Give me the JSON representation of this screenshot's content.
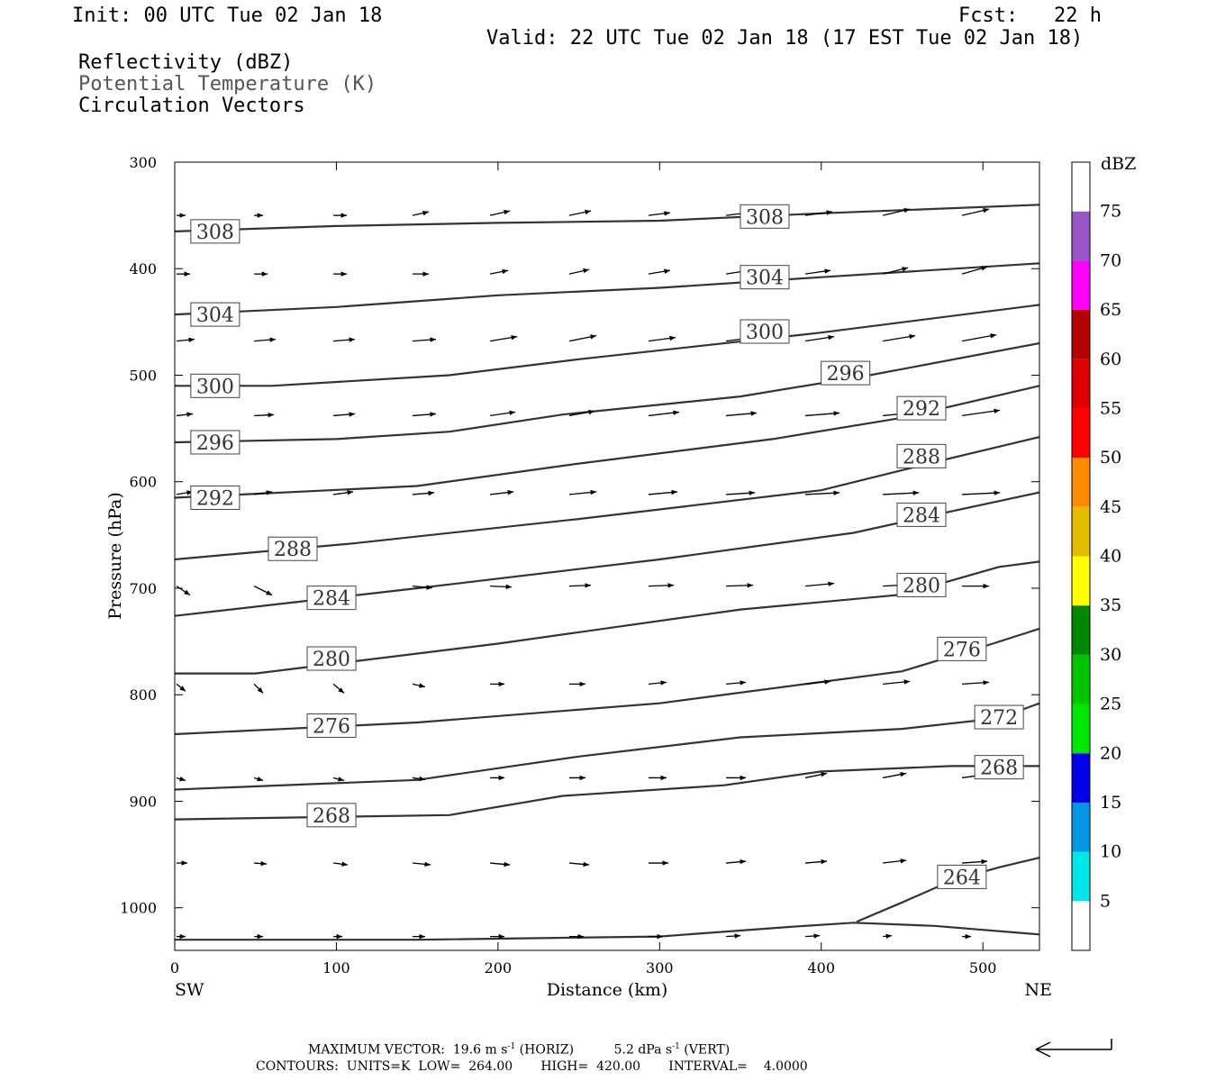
{
  "header": {
    "init": "Init: 00 UTC Tue 02 Jan 18",
    "fcst": "Fcst:   22 h",
    "valid": "Valid: 22 UTC Tue 02 Jan 18 (17 EST Tue 02 Jan 18)",
    "fields": [
      "Reflectivity (dBZ)",
      "Potential Temperature (K)",
      "Circulation Vectors"
    ]
  },
  "footer": {
    "max_vector_label": "MAXIMUM VECTOR:",
    "horiz_value": "19.6 m s",
    "horiz_tag": "(HORIZ)",
    "vert_value": "5.2 dPa s",
    "vert_tag": "(VERT)",
    "exponent": "-1",
    "contours_line": "CONTOURS:  UNITS=K  LOW=  264.00       HIGH=  420.00       INTERVAL=    4.0000"
  },
  "colorbar": {
    "unit": "dBZ",
    "levels": [
      5,
      10,
      15,
      20,
      25,
      30,
      35,
      40,
      45,
      50,
      55,
      60,
      65,
      70,
      75
    ],
    "colors": [
      "#00e5e5",
      "#0096e5",
      "#0000e6",
      "#00e600",
      "#00c400",
      "#008800",
      "#ffff00",
      "#e6bc00",
      "#ff8c00",
      "#ff0000",
      "#dc0000",
      "#b40000",
      "#ff00ff",
      "#9955c8",
      "#ffffff"
    ]
  },
  "chart_data": {
    "type": "line",
    "title": "",
    "xlabel": "Distance (km)",
    "ylabel": "Pressure (hPa)",
    "xlim": [
      0,
      535
    ],
    "ylim": [
      1040,
      300
    ],
    "x_ticks": [
      0,
      100,
      200,
      300,
      400,
      500
    ],
    "y_ticks": [
      300,
      400,
      500,
      600,
      700,
      800,
      900,
      1000
    ],
    "x_end_labels": {
      "left": "SW",
      "right": "NE"
    },
    "grid": false,
    "series_label": "Potential Temperature (K)",
    "contours": [
      {
        "value": 308,
        "points": [
          [
            0,
            365
          ],
          [
            100,
            360
          ],
          [
            200,
            357
          ],
          [
            300,
            355
          ],
          [
            400,
            348
          ],
          [
            535,
            340
          ]
        ],
        "labels": [
          [
            25,
            365
          ],
          [
            365,
            351
          ]
        ]
      },
      {
        "value": 304,
        "points": [
          [
            0,
            443
          ],
          [
            100,
            436
          ],
          [
            200,
            425
          ],
          [
            300,
            418
          ],
          [
            400,
            408
          ],
          [
            535,
            395
          ]
        ],
        "labels": [
          [
            25,
            443
          ],
          [
            365,
            408
          ]
        ]
      },
      {
        "value": 300,
        "points": [
          [
            0,
            510
          ],
          [
            60,
            510
          ],
          [
            170,
            500
          ],
          [
            250,
            485
          ],
          [
            400,
            460
          ],
          [
            535,
            434
          ]
        ],
        "labels": [
          [
            25,
            510
          ],
          [
            365,
            459
          ]
        ]
      },
      {
        "value": 296,
        "points": [
          [
            0,
            563
          ],
          [
            100,
            560
          ],
          [
            170,
            553
          ],
          [
            240,
            537
          ],
          [
            350,
            520
          ],
          [
            430,
            500
          ],
          [
            535,
            470
          ]
        ],
        "labels": [
          [
            25,
            563
          ],
          [
            415,
            498
          ]
        ]
      },
      {
        "value": 292,
        "points": [
          [
            0,
            615
          ],
          [
            150,
            604
          ],
          [
            250,
            583
          ],
          [
            370,
            560
          ],
          [
            450,
            540
          ],
          [
            535,
            510
          ]
        ],
        "labels": [
          [
            25,
            615
          ],
          [
            462,
            531
          ]
        ]
      },
      {
        "value": 288,
        "points": [
          [
            0,
            673
          ],
          [
            110,
            658
          ],
          [
            250,
            635
          ],
          [
            400,
            608
          ],
          [
            480,
            578
          ],
          [
            535,
            558
          ]
        ],
        "labels": [
          [
            73,
            663
          ],
          [
            462,
            576
          ]
        ]
      },
      {
        "value": 284,
        "points": [
          [
            0,
            726
          ],
          [
            150,
            700
          ],
          [
            300,
            673
          ],
          [
            420,
            648
          ],
          [
            480,
            628
          ],
          [
            535,
            610
          ]
        ],
        "labels": [
          [
            97,
            709
          ],
          [
            462,
            631
          ]
        ]
      },
      {
        "value": 280,
        "points": [
          [
            0,
            780
          ],
          [
            50,
            780
          ],
          [
            200,
            752
          ],
          [
            350,
            720
          ],
          [
            450,
            706
          ],
          [
            510,
            680
          ],
          [
            535,
            675
          ]
        ],
        "labels": [
          [
            97,
            766
          ],
          [
            462,
            697
          ]
        ]
      },
      {
        "value": 276,
        "points": [
          [
            0,
            837
          ],
          [
            150,
            826
          ],
          [
            300,
            808
          ],
          [
            450,
            778
          ],
          [
            500,
            755
          ],
          [
            535,
            738
          ]
        ],
        "labels": [
          [
            97,
            829
          ],
          [
            487,
            757
          ]
        ]
      },
      {
        "value": 272,
        "points": [
          [
            0,
            889
          ],
          [
            150,
            880
          ],
          [
            250,
            858
          ],
          [
            350,
            840
          ],
          [
            450,
            832
          ],
          [
            510,
            822
          ],
          [
            535,
            808
          ]
        ],
        "labels": [
          [
            510,
            821
          ]
        ]
      },
      {
        "value": 268,
        "points": [
          [
            0,
            917
          ],
          [
            170,
            913
          ],
          [
            240,
            895
          ],
          [
            340,
            885
          ],
          [
            400,
            872
          ],
          [
            480,
            867
          ],
          [
            535,
            867
          ]
        ],
        "labels": [
          [
            97,
            913
          ],
          [
            510,
            868
          ]
        ]
      },
      {
        "value": 264,
        "points": [
          [
            0,
            1030
          ],
          [
            150,
            1030
          ],
          [
            300,
            1027
          ],
          [
            380,
            1018
          ],
          [
            420,
            1014
          ],
          [
            470,
            1017
          ],
          [
            535,
            1025
          ]
        ],
        "labels": []
      },
      {
        "value": 264,
        "points": [
          [
            422,
            1013
          ],
          [
            450,
            995
          ],
          [
            480,
            975
          ],
          [
            510,
            962
          ],
          [
            535,
            953
          ]
        ],
        "labels": [
          [
            487,
            971
          ]
        ]
      }
    ],
    "vectors": {
      "columns_x": [
        0,
        48,
        97,
        146,
        194,
        243,
        292,
        340,
        389,
        437,
        486
      ],
      "rows": [
        {
          "p": 350,
          "d": [
            [
              10,
              0
            ],
            [
              10,
              0
            ],
            [
              15,
              0
            ],
            [
              18,
              -4
            ],
            [
              22,
              -5
            ],
            [
              24,
              -5
            ],
            [
              24,
              -3
            ],
            [
              24,
              -3
            ],
            [
              30,
              -4
            ],
            [
              30,
              -7
            ],
            [
              30,
              -7
            ]
          ]
        },
        {
          "p": 405,
          "d": [
            [
              15,
              0
            ],
            [
              15,
              0
            ],
            [
              15,
              0
            ],
            [
              18,
              0
            ],
            [
              20,
              -4
            ],
            [
              22,
              -5
            ],
            [
              24,
              -4
            ],
            [
              26,
              -4
            ],
            [
              28,
              -4
            ],
            [
              28,
              -7
            ],
            [
              28,
              -8
            ]
          ]
        },
        {
          "p": 468,
          "d": [
            [
              20,
              -2
            ],
            [
              24,
              -2
            ],
            [
              24,
              -2
            ],
            [
              26,
              -2
            ],
            [
              30,
              -5
            ],
            [
              30,
              -6
            ],
            [
              30,
              -4
            ],
            [
              30,
              -4
            ],
            [
              32,
              -5
            ],
            [
              36,
              -6
            ],
            [
              38,
              -7
            ]
          ]
        },
        {
          "p": 538,
          "d": [
            [
              18,
              -2
            ],
            [
              22,
              -1
            ],
            [
              24,
              -2
            ],
            [
              26,
              -2
            ],
            [
              28,
              -4
            ],
            [
              28,
              -5
            ],
            [
              34,
              -4
            ],
            [
              34,
              -3
            ],
            [
              38,
              -3
            ],
            [
              40,
              -4
            ],
            [
              42,
              -6
            ]
          ]
        },
        {
          "p": 612,
          "d": [
            [
              18,
              -3
            ],
            [
              20,
              -3
            ],
            [
              22,
              -3
            ],
            [
              24,
              -2
            ],
            [
              26,
              -3
            ],
            [
              30,
              -3
            ],
            [
              32,
              -3
            ],
            [
              32,
              -2
            ],
            [
              38,
              -2
            ],
            [
              40,
              -2
            ],
            [
              42,
              -2
            ]
          ]
        },
        {
          "p": 698,
          "d": [
            [
              15,
              10
            ],
            [
              20,
              10
            ],
            [
              20,
              6
            ],
            [
              22,
              2
            ],
            [
              24,
              1
            ],
            [
              24,
              -1
            ],
            [
              28,
              -1
            ],
            [
              30,
              -1
            ],
            [
              32,
              -3
            ],
            [
              36,
              -2
            ],
            [
              30,
              0
            ]
          ]
        },
        {
          "p": 790,
          "d": [
            [
              10,
              8
            ],
            [
              10,
              10
            ],
            [
              12,
              10
            ],
            [
              14,
              3
            ],
            [
              16,
              0
            ],
            [
              18,
              0
            ],
            [
              20,
              -2
            ],
            [
              22,
              -2
            ],
            [
              28,
              -3
            ],
            [
              30,
              -3
            ],
            [
              30,
              -2
            ]
          ]
        },
        {
          "p": 878,
          "d": [
            [
              10,
              3
            ],
            [
              10,
              3
            ],
            [
              12,
              3
            ],
            [
              14,
              2
            ],
            [
              16,
              0
            ],
            [
              18,
              0
            ],
            [
              20,
              0
            ],
            [
              22,
              0
            ],
            [
              24,
              -5
            ],
            [
              26,
              -5
            ],
            [
              28,
              -4
            ]
          ]
        },
        {
          "p": 958,
          "d": [
            [
              12,
              0
            ],
            [
              14,
              1
            ],
            [
              16,
              2
            ],
            [
              20,
              2
            ],
            [
              22,
              2
            ],
            [
              22,
              2
            ],
            [
              22,
              0
            ],
            [
              22,
              -2
            ],
            [
              24,
              -2
            ],
            [
              26,
              -3
            ],
            [
              28,
              -2
            ]
          ]
        },
        {
          "p": 1027,
          "d": [
            [
              10,
              0
            ],
            [
              10,
              0
            ],
            [
              10,
              0
            ],
            [
              14,
              0
            ],
            [
              16,
              0
            ],
            [
              16,
              0
            ],
            [
              16,
              0
            ],
            [
              16,
              -1
            ],
            [
              16,
              -1
            ],
            [
              10,
              -1
            ],
            [
              10,
              0
            ]
          ]
        }
      ]
    }
  }
}
